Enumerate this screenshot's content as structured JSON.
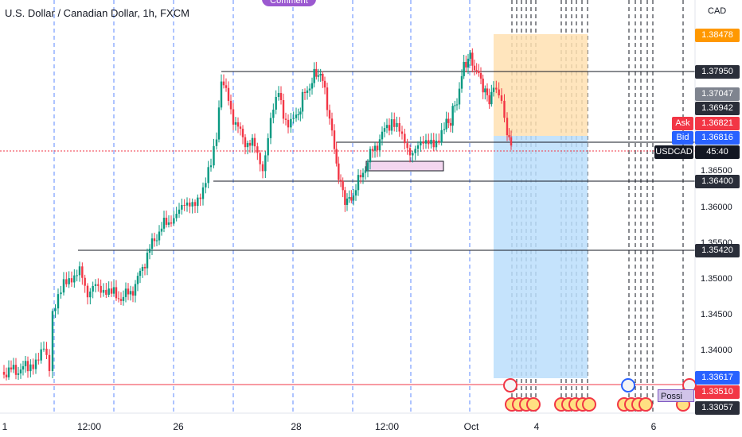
{
  "header": {
    "title": "U.S. Dollar / Canadian Dollar, 1h, FXCM",
    "comment_button": "Comment",
    "currency": "CAD"
  },
  "price_tags": {
    "tp": "1.38478",
    "r1": "1.37950",
    "p1": "1.37047",
    "p2": "1.36942",
    "ask_label": "Ask",
    "ask": "1.36821",
    "bid_label": "Bid",
    "bid": "1.36816",
    "symbol": "USDCAD",
    "countdown": "45:40",
    "s1": "1.36400",
    "s2": "1.35420",
    "sl": "1.33617",
    "red_level": "1.33510",
    "bottom": "1.33057"
  },
  "price_axis": [
    "1.36500",
    "1.36000",
    "1.35500",
    "1.35000",
    "1.34500",
    "1.34000"
  ],
  "time_axis": [
    "1",
    "12:00",
    "26",
    "28",
    "12:00",
    "Oct",
    "4",
    "6"
  ],
  "possible_label": "Possi",
  "colors": {
    "up": "#089981",
    "down": "#f23645",
    "profit_zone": "#ffe0b2",
    "loss_zone": "#bbdefb",
    "session_line": "#2962ff"
  }
}
